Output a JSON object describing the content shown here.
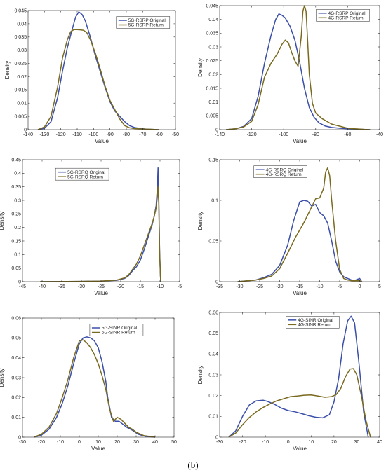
{
  "caption": "(b)",
  "chart_data": [
    {
      "type": "line",
      "xlabel": "Value",
      "ylabel": "Density",
      "xlim": [
        -140,
        -50
      ],
      "ylim": [
        0,
        0.045
      ],
      "xticks": [
        -140,
        -130,
        -120,
        -110,
        -100,
        -90,
        -80,
        -70,
        -60,
        -50
      ],
      "xticklabels": [
        "-140",
        "-130",
        "-120",
        "-110",
        "-100",
        "-90",
        "-80",
        "-70",
        "-60",
        "-50"
      ],
      "yticks": [
        0,
        0.005,
        0.01,
        0.015,
        0.02,
        0.025,
        0.03,
        0.035,
        0.04,
        0.045
      ],
      "yticklabels": [
        "0",
        "0.005",
        "0.01",
        "0.015",
        "0.02",
        "0.025",
        "0.03",
        "0.035",
        "0.04",
        "0.045"
      ],
      "grid": false,
      "legend_position": "top-right",
      "series": [
        {
          "name": "5G-RSRP Original",
          "color": "#3b4fa8",
          "x": [
            -134,
            -130,
            -126,
            -122,
            -119,
            -116,
            -113,
            -111,
            -109,
            -107,
            -105,
            -102,
            -99,
            -96,
            -93,
            -90,
            -87,
            -84,
            -81,
            -78,
            -75,
            -72,
            -68,
            -64,
            -60
          ],
          "y": [
            0,
            0.0005,
            0.003,
            0.012,
            0.022,
            0.031,
            0.038,
            0.0425,
            0.0445,
            0.0435,
            0.041,
            0.035,
            0.028,
            0.022,
            0.016,
            0.0105,
            0.007,
            0.005,
            0.003,
            0.0015,
            0.0008,
            0.0005,
            0.0002,
            0.0001,
            0
          ]
        },
        {
          "name": "5G-RSRP Return",
          "color": "#7a6a1f",
          "x": [
            -134,
            -130,
            -126,
            -122,
            -119,
            -116,
            -114,
            -112,
            -110,
            -108,
            -106,
            -104,
            -102,
            -99,
            -96,
            -93,
            -90,
            -87,
            -84,
            -81,
            -78,
            -75,
            -72,
            -68,
            -64,
            -60
          ],
          "y": [
            0,
            0.001,
            0.005,
            0.016,
            0.027,
            0.034,
            0.037,
            0.0378,
            0.0378,
            0.0377,
            0.0375,
            0.0365,
            0.034,
            0.029,
            0.023,
            0.0165,
            0.011,
            0.0075,
            0.004,
            0.0015,
            0.0007,
            0.0004,
            0.0003,
            0.0002,
            0.0001,
            0
          ]
        }
      ]
    },
    {
      "type": "line",
      "xlabel": "Value",
      "ylabel": "Density",
      "xlim": [
        -140,
        -40
      ],
      "ylim": [
        0,
        0.045
      ],
      "xticks": [
        -140,
        -120,
        -100,
        -80,
        -60,
        -40
      ],
      "xticklabels": [
        "-140",
        "-120",
        "-100",
        "-80",
        "-60",
        "-40"
      ],
      "yticks": [
        0,
        0.005,
        0.01,
        0.015,
        0.02,
        0.025,
        0.03,
        0.035,
        0.04,
        0.045
      ],
      "yticklabels": [
        "0",
        "0.005",
        "0.01",
        "0.015",
        "0.02",
        "0.025",
        "0.03",
        "0.035",
        "0.04",
        "0.045"
      ],
      "grid": false,
      "legend_position": "top-right",
      "series": [
        {
          "name": "4G-RSRP Original",
          "color": "#3b4fa8",
          "x": [
            -136,
            -130,
            -125,
            -120,
            -116,
            -112,
            -108,
            -105,
            -103,
            -101,
            -99,
            -96,
            -93,
            -90,
            -87,
            -84,
            -81,
            -78,
            -74,
            -70,
            -65,
            -60,
            -55,
            -50,
            -46
          ],
          "y": [
            0,
            0.0003,
            0.0012,
            0.004,
            0.012,
            0.024,
            0.034,
            0.04,
            0.042,
            0.0415,
            0.0405,
            0.0375,
            0.0325,
            0.0245,
            0.015,
            0.008,
            0.0045,
            0.0025,
            0.0013,
            0.0008,
            0.0005,
            0.0003,
            0.0002,
            0.0001,
            0
          ]
        },
        {
          "name": "4G-RSRP Return",
          "color": "#7a6a1f",
          "x": [
            -136,
            -130,
            -125,
            -120,
            -116,
            -112,
            -108,
            -104,
            -101,
            -99,
            -97,
            -95,
            -93,
            -91,
            -89,
            -88,
            -87,
            -86,
            -85,
            -84,
            -82,
            -80,
            -76,
            -70,
            -60,
            -50,
            -46
          ],
          "y": [
            0,
            0.0003,
            0.001,
            0.003,
            0.009,
            0.019,
            0.024,
            0.0275,
            0.031,
            0.0325,
            0.0315,
            0.028,
            0.025,
            0.023,
            0.034,
            0.043,
            0.045,
            0.043,
            0.032,
            0.02,
            0.0095,
            0.006,
            0.004,
            0.002,
            0.0005,
            0.0001,
            0
          ]
        }
      ]
    },
    {
      "type": "line",
      "xlabel": "Value",
      "ylabel": "Density",
      "xlim": [
        -45,
        -5
      ],
      "ylim": [
        0,
        0.45
      ],
      "xticks": [
        -45,
        -40,
        -35,
        -30,
        -25,
        -20,
        -15,
        -10,
        -5
      ],
      "xticklabels": [
        "-45",
        "-40",
        "-35",
        "-30",
        "-25",
        "-20",
        "-15",
        "-10",
        "-5"
      ],
      "yticks": [
        0,
        0.05,
        0.1,
        0.15,
        0.2,
        0.25,
        0.3,
        0.35,
        0.4,
        0.45
      ],
      "yticklabels": [
        "0",
        "0.05",
        "0.1",
        "0.15",
        "0.2",
        "0.25",
        "0.3",
        "0.35",
        "0.4",
        "0.45"
      ],
      "grid": false,
      "legend_position": "top-left",
      "series": [
        {
          "name": "5G-RSRQ Original",
          "color": "#3b4fa8",
          "x": [
            -40.5,
            -30,
            -25,
            -21,
            -19,
            -18,
            -17,
            -16,
            -15,
            -14,
            -13,
            -12,
            -11.5,
            -11,
            -10.7,
            -10.5,
            -10.3,
            -10.1,
            -9.9,
            -9.8
          ],
          "y": [
            0,
            0.001,
            0.002,
            0.005,
            0.012,
            0.022,
            0.04,
            0.055,
            0.08,
            0.12,
            0.165,
            0.21,
            0.24,
            0.28,
            0.34,
            0.42,
            0.3,
            0.12,
            0.02,
            0
          ]
        },
        {
          "name": "5G-RSRQ Return",
          "color": "#7a6a1f",
          "x": [
            -40.5,
            -30,
            -25,
            -21,
            -19,
            -18,
            -17,
            -16,
            -15,
            -14,
            -13,
            -12,
            -11.5,
            -11,
            -10.7,
            -10.5,
            -10.3,
            -10.1,
            -9.9,
            -9.8
          ],
          "y": [
            0,
            0.001,
            0.002,
            0.006,
            0.014,
            0.025,
            0.045,
            0.065,
            0.095,
            0.135,
            0.175,
            0.215,
            0.24,
            0.27,
            0.31,
            0.35,
            0.28,
            0.11,
            0.02,
            0
          ]
        }
      ]
    },
    {
      "type": "line",
      "xlabel": "Value",
      "ylabel": "Density",
      "xlim": [
        -35,
        5
      ],
      "ylim": [
        0,
        0.15
      ],
      "xticks": [
        -35,
        -30,
        -25,
        -20,
        -15,
        -10,
        -5,
        0,
        5
      ],
      "xticklabels": [
        "-35",
        "-30",
        "-25",
        "-20",
        "-15",
        "-10",
        "-5",
        "0",
        "5"
      ],
      "yticks": [
        0,
        0.05,
        0.1,
        0.15
      ],
      "yticklabels": [
        "0",
        "0.05",
        "0.1",
        "0.15"
      ],
      "grid": false,
      "legend_position": "top-left",
      "series": [
        {
          "name": "4G-RSRQ Original",
          "color": "#3b4fa8",
          "x": [
            -30.5,
            -28,
            -26,
            -24,
            -22,
            -20,
            -18,
            -16.5,
            -15,
            -14,
            -13,
            -12,
            -11,
            -10,
            -9,
            -8,
            -7,
            -6,
            -5,
            -4,
            -3,
            -2,
            -1,
            0,
            0.5
          ],
          "y": [
            0,
            0.001,
            0.002,
            0.005,
            0.009,
            0.02,
            0.045,
            0.075,
            0.098,
            0.1,
            0.099,
            0.093,
            0.095,
            0.085,
            0.081,
            0.072,
            0.05,
            0.025,
            0.012,
            0.006,
            0.004,
            0.002,
            0.002,
            0.004,
            0
          ]
        },
        {
          "name": "4G-RSRQ Return",
          "color": "#7a6a1f",
          "x": [
            -30.5,
            -28,
            -26,
            -24,
            -22,
            -20,
            -18,
            -16,
            -14,
            -12,
            -11,
            -10,
            -9,
            -8.5,
            -8,
            -7.5,
            -7,
            -6,
            -5,
            -4,
            -3,
            -2,
            -1,
            0,
            0.5
          ],
          "y": [
            0,
            0.001,
            0.002,
            0.004,
            0.007,
            0.016,
            0.035,
            0.055,
            0.072,
            0.092,
            0.102,
            0.103,
            0.115,
            0.135,
            0.14,
            0.13,
            0.1,
            0.05,
            0.015,
            0.004,
            0.002,
            0.001,
            0.001,
            0.001,
            0
          ]
        }
      ]
    },
    {
      "type": "line",
      "xlabel": "Value",
      "ylabel": "Density",
      "xlim": [
        -30,
        50
      ],
      "ylim": [
        0,
        0.06
      ],
      "xticks": [
        -30,
        -20,
        -10,
        0,
        10,
        20,
        30,
        40,
        50
      ],
      "xticklabels": [
        "-30",
        "-20",
        "-10",
        "0",
        "10",
        "20",
        "30",
        "40",
        "50"
      ],
      "yticks": [
        0,
        0.01,
        0.02,
        0.03,
        0.04,
        0.05,
        0.06
      ],
      "yticklabels": [
        "0",
        "0.01",
        "0.02",
        "0.03",
        "0.04",
        "0.05",
        "0.06"
      ],
      "grid": false,
      "legend_position": "top-right",
      "series": [
        {
          "name": "5G-SINR Original",
          "color": "#3b4fa8",
          "x": [
            -24,
            -20,
            -16,
            -12,
            -9,
            -6,
            -3,
            0,
            2,
            4,
            6,
            8,
            10,
            12,
            14,
            15,
            17,
            19,
            21,
            23,
            25,
            28,
            31,
            35,
            40
          ],
          "y": [
            0,
            0.001,
            0.004,
            0.01,
            0.017,
            0.026,
            0.037,
            0.047,
            0.05,
            0.0505,
            0.05,
            0.0485,
            0.045,
            0.038,
            0.028,
            0.02,
            0.01,
            0.008,
            0.008,
            0.0065,
            0.005,
            0.0035,
            0.0015,
            0.0004,
            0
          ]
        },
        {
          "name": "5G-SINR Return",
          "color": "#7a6a1f",
          "x": [
            -24,
            -20,
            -16,
            -12,
            -9,
            -6,
            -3,
            0,
            2,
            4,
            6,
            8,
            10,
            12,
            14,
            16,
            18,
            20,
            22,
            24,
            26,
            28,
            30,
            34,
            40
          ],
          "y": [
            0,
            0.0015,
            0.005,
            0.012,
            0.02,
            0.029,
            0.04,
            0.0485,
            0.049,
            0.0475,
            0.045,
            0.0415,
            0.037,
            0.031,
            0.024,
            0.014,
            0.008,
            0.01,
            0.009,
            0.007,
            0.005,
            0.004,
            0.0025,
            0.0008,
            0
          ]
        }
      ]
    },
    {
      "type": "line",
      "xlabel": "Value",
      "ylabel": "Density",
      "xlim": [
        -30,
        40
      ],
      "ylim": [
        0,
        0.06
      ],
      "xticks": [
        -30,
        -20,
        -10,
        0,
        10,
        20,
        30,
        40
      ],
      "xticklabels": [
        "-30",
        "-20",
        "-10",
        "0",
        "10",
        "20",
        "30",
        "40"
      ],
      "yticks": [
        0,
        0.01,
        0.02,
        0.03,
        0.04,
        0.05,
        0.06
      ],
      "yticklabels": [
        "0",
        "0.01",
        "0.02",
        "0.03",
        "0.04",
        "0.05",
        "0.06"
      ],
      "grid": false,
      "legend_position": "top-center",
      "series": [
        {
          "name": "4G-SINR Original",
          "color": "#3b4fa8",
          "x": [
            -26,
            -23,
            -20,
            -17,
            -14,
            -11,
            -9,
            -6,
            -3,
            0,
            3,
            6,
            9,
            12,
            15,
            18,
            20,
            22,
            24,
            26,
            27.5,
            29,
            31,
            33,
            35
          ],
          "y": [
            0,
            0.003,
            0.01,
            0.0155,
            0.0175,
            0.0178,
            0.0172,
            0.0158,
            0.014,
            0.0128,
            0.0122,
            0.0113,
            0.0103,
            0.0096,
            0.0093,
            0.0108,
            0.017,
            0.028,
            0.045,
            0.056,
            0.0582,
            0.055,
            0.035,
            0.012,
            0
          ]
        },
        {
          "name": "4G-SINR Return",
          "color": "#7a6a1f",
          "x": [
            -26,
            -23,
            -20,
            -17,
            -14,
            -11,
            -8,
            -5,
            -2,
            1,
            4,
            7,
            10,
            13,
            16,
            19,
            21,
            23,
            25,
            27,
            28.5,
            30,
            32,
            34,
            36
          ],
          "y": [
            0,
            0.002,
            0.006,
            0.0095,
            0.0122,
            0.0143,
            0.016,
            0.0175,
            0.0185,
            0.0195,
            0.0198,
            0.0202,
            0.0203,
            0.0198,
            0.0192,
            0.0195,
            0.0205,
            0.0235,
            0.029,
            0.0328,
            0.033,
            0.03,
            0.02,
            0.008,
            0
          ]
        }
      ]
    }
  ]
}
